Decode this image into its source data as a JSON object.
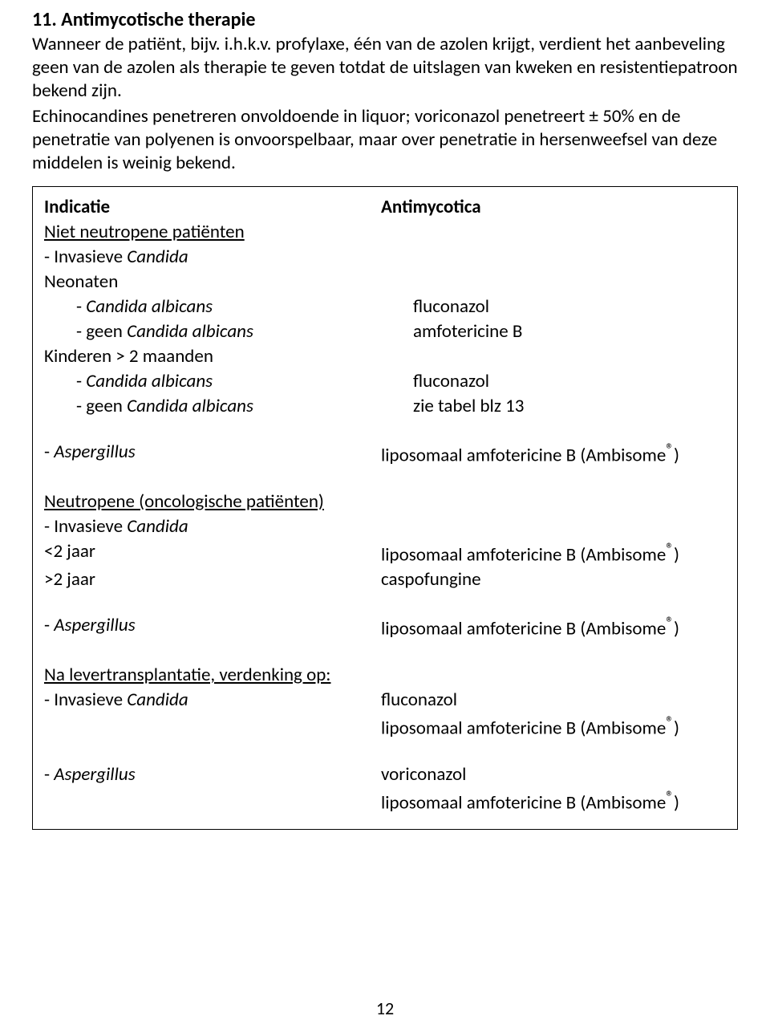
{
  "heading": "11. Antimycotische therapie",
  "para1": "Wanneer de patiënt, bijv. i.h.k.v. profylaxe, één van de azolen krijgt, verdient het aanbeveling geen van de azolen als therapie te geven totdat de uitslagen van kweken en resistentiepatroon bekend zijn.",
  "para2": "Echinocandines penetreren onvoldoende in liquor; voriconazol penetreert ± 50% en de penetratie van polyenen is onvoorspelbaar, maar over penetratie in hersenweefsel van deze middelen is weinig bekend.",
  "table": {
    "header": {
      "left": "Indicatie",
      "right": "Antimycotica"
    },
    "section1": {
      "title": "Niet neutropene patiënten",
      "invasieve_pre": "- Invasieve ",
      "invasieve_it": "Candida",
      "neonaten": "Neonaten",
      "candida_albicans_pre": "- ",
      "candida_albicans_it": "Candida albicans",
      "geen_candida_pre": "- geen ",
      "geen_candida_it": "Candida albicans",
      "kinderen": "Kinderen > 2 maanden",
      "aspergillus_pre": "- ",
      "aspergillus_it": "Aspergillus",
      "r_fluconazol": "fluconazol",
      "r_amfoB": "amfotericine B",
      "r_tabel": "zie tabel blz 13",
      "r_lipamb_pre": "liposomaal amfotericine B (Ambisome",
      "r_reg": "®",
      "r_close": ")"
    },
    "section2": {
      "title": "Neutropene (oncologische patiënten)",
      "invasieve_pre": "- Invasieve ",
      "invasieve_it": "Candida",
      "lt2": "<2 jaar",
      "gt2": ">2 jaar",
      "r_caspo": " caspofungine",
      "aspergillus_pre": "- ",
      "aspergillus_it": "Aspergillus"
    },
    "section3": {
      "title": "Na levertransplantatie, verdenking op:",
      "invasieve_pre": "- Invasieve ",
      "invasieve_it": "Candida",
      "aspergillus_pre": "- ",
      "aspergillus_it": "Aspergillus",
      "r_vori": "voriconazol"
    }
  },
  "pageNumber": "12"
}
